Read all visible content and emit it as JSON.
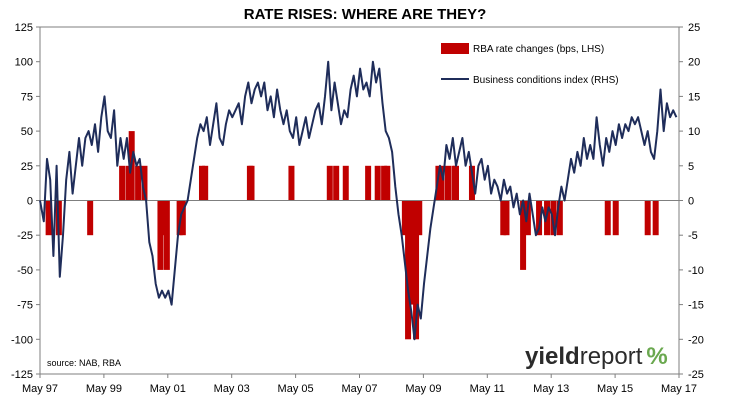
{
  "chart_data": {
    "type": "bar+line",
    "title": "RATE RISES: WHERE ARE THEY?",
    "source": "source: NAB, RBA",
    "brand": {
      "word": "yield",
      "word2": "report",
      "symbol": "%",
      "colors": {
        "dark": "#2b2b2b",
        "accent": "#6aa84f"
      }
    },
    "x_ticks": [
      "May 97",
      "May 99",
      "May 01",
      "May 03",
      "May 05",
      "May 07",
      "May 09",
      "May 11",
      "May 13",
      "May 15",
      "May 17"
    ],
    "xlim": [
      1997.33,
      2017.33
    ],
    "y_left": {
      "ticks": [
        125,
        100,
        75,
        50,
        25,
        0,
        -25,
        -50,
        -75,
        -100,
        -125
      ],
      "ylim": [
        -125,
        125
      ]
    },
    "y_right": {
      "ticks": [
        25,
        20,
        15,
        10,
        5,
        0,
        -5,
        -10,
        -15,
        -20,
        -25
      ],
      "ylim": [
        -25,
        25
      ]
    },
    "series": [
      {
        "name": "RBA rate changes (bps, LHS)",
        "kind": "bar",
        "axis": "left",
        "color": "#c00000",
        "points": [
          [
            1997.6,
            -25
          ],
          [
            1997.92,
            -25
          ],
          [
            1998.9,
            -25
          ],
          [
            1999.9,
            25
          ],
          [
            2000.1,
            25
          ],
          [
            2000.2,
            50
          ],
          [
            2000.4,
            25
          ],
          [
            2000.6,
            25
          ],
          [
            2001.1,
            -50
          ],
          [
            2001.2,
            -25
          ],
          [
            2001.3,
            -50
          ],
          [
            2001.7,
            -25
          ],
          [
            2001.8,
            -25
          ],
          [
            2002.4,
            25
          ],
          [
            2002.5,
            25
          ],
          [
            2003.9,
            25
          ],
          [
            2003.95,
            25
          ],
          [
            2005.2,
            25
          ],
          [
            2006.4,
            25
          ],
          [
            2006.6,
            25
          ],
          [
            2006.9,
            25
          ],
          [
            2007.6,
            25
          ],
          [
            2007.9,
            25
          ],
          [
            2008.1,
            25
          ],
          [
            2008.2,
            25
          ],
          [
            2008.75,
            -25
          ],
          [
            2008.85,
            -100
          ],
          [
            2008.95,
            -75
          ],
          [
            2009.1,
            -100
          ],
          [
            2009.2,
            -25
          ],
          [
            2009.8,
            25
          ],
          [
            2009.9,
            25
          ],
          [
            2010.1,
            25
          ],
          [
            2010.3,
            25
          ],
          [
            2010.35,
            25
          ],
          [
            2010.85,
            25
          ],
          [
            2011.83,
            -25
          ],
          [
            2011.93,
            -25
          ],
          [
            2012.45,
            -50
          ],
          [
            2012.6,
            -25
          ],
          [
            2012.95,
            -25
          ],
          [
            2013.2,
            -25
          ],
          [
            2013.4,
            -25
          ],
          [
            2013.6,
            -25
          ],
          [
            2015.1,
            -25
          ],
          [
            2015.35,
            -25
          ],
          [
            2016.35,
            -25
          ],
          [
            2016.6,
            -25
          ]
        ]
      },
      {
        "name": "Business conditions index (RHS)",
        "kind": "line",
        "axis": "right",
        "color": "#1f2d5a",
        "points": [
          [
            1997.33,
            0
          ],
          [
            1997.45,
            -3
          ],
          [
            1997.55,
            6
          ],
          [
            1997.65,
            3
          ],
          [
            1997.75,
            -8
          ],
          [
            1997.85,
            5
          ],
          [
            1997.95,
            -11
          ],
          [
            1998.05,
            -5
          ],
          [
            1998.15,
            3
          ],
          [
            1998.25,
            7
          ],
          [
            1998.35,
            1
          ],
          [
            1998.45,
            5
          ],
          [
            1998.55,
            9
          ],
          [
            1998.65,
            5
          ],
          [
            1998.75,
            9
          ],
          [
            1998.85,
            10
          ],
          [
            1998.95,
            8
          ],
          [
            1999.05,
            11
          ],
          [
            1999.15,
            7
          ],
          [
            1999.25,
            12
          ],
          [
            1999.35,
            15
          ],
          [
            1999.45,
            10
          ],
          [
            1999.55,
            9
          ],
          [
            1999.65,
            13
          ],
          [
            1999.75,
            5
          ],
          [
            1999.85,
            9
          ],
          [
            1999.95,
            6
          ],
          [
            2000.05,
            9
          ],
          [
            2000.15,
            4
          ],
          [
            2000.25,
            7
          ],
          [
            2000.35,
            5
          ],
          [
            2000.45,
            6
          ],
          [
            2000.55,
            2
          ],
          [
            2000.65,
            0
          ],
          [
            2000.75,
            -6
          ],
          [
            2000.85,
            -8
          ],
          [
            2000.95,
            -12
          ],
          [
            2001.05,
            -14
          ],
          [
            2001.15,
            -13
          ],
          [
            2001.25,
            -14
          ],
          [
            2001.35,
            -13
          ],
          [
            2001.45,
            -15
          ],
          [
            2001.55,
            -10
          ],
          [
            2001.65,
            -5
          ],
          [
            2001.75,
            -2
          ],
          [
            2001.85,
            -1
          ],
          [
            2001.95,
            0
          ],
          [
            2002.05,
            3
          ],
          [
            2002.15,
            6
          ],
          [
            2002.25,
            9
          ],
          [
            2002.35,
            11
          ],
          [
            2002.45,
            10
          ],
          [
            2002.55,
            12
          ],
          [
            2002.65,
            8
          ],
          [
            2002.75,
            11
          ],
          [
            2002.85,
            14
          ],
          [
            2002.95,
            9
          ],
          [
            2003.05,
            8
          ],
          [
            2003.15,
            11
          ],
          [
            2003.25,
            13
          ],
          [
            2003.35,
            12
          ],
          [
            2003.45,
            13
          ],
          [
            2003.55,
            14
          ],
          [
            2003.65,
            11
          ],
          [
            2003.75,
            15
          ],
          [
            2003.85,
            17
          ],
          [
            2003.95,
            14
          ],
          [
            2004.05,
            16
          ],
          [
            2004.15,
            17
          ],
          [
            2004.25,
            15
          ],
          [
            2004.35,
            17
          ],
          [
            2004.45,
            13
          ],
          [
            2004.55,
            15
          ],
          [
            2004.65,
            12
          ],
          [
            2004.75,
            16
          ],
          [
            2004.85,
            13
          ],
          [
            2004.95,
            11
          ],
          [
            2005.05,
            13
          ],
          [
            2005.15,
            10
          ],
          [
            2005.25,
            9
          ],
          [
            2005.35,
            12
          ],
          [
            2005.45,
            8
          ],
          [
            2005.55,
            10
          ],
          [
            2005.65,
            12
          ],
          [
            2005.75,
            9
          ],
          [
            2005.85,
            11
          ],
          [
            2005.95,
            13
          ],
          [
            2006.05,
            14
          ],
          [
            2006.15,
            11
          ],
          [
            2006.25,
            15
          ],
          [
            2006.35,
            20
          ],
          [
            2006.45,
            13
          ],
          [
            2006.55,
            17
          ],
          [
            2006.65,
            14
          ],
          [
            2006.75,
            11
          ],
          [
            2006.85,
            13
          ],
          [
            2006.95,
            12
          ],
          [
            2007.05,
            16
          ],
          [
            2007.15,
            18
          ],
          [
            2007.25,
            15
          ],
          [
            2007.35,
            19
          ],
          [
            2007.45,
            16
          ],
          [
            2007.55,
            17
          ],
          [
            2007.65,
            15
          ],
          [
            2007.75,
            20
          ],
          [
            2007.85,
            17
          ],
          [
            2007.95,
            19
          ],
          [
            2008.05,
            14
          ],
          [
            2008.15,
            10
          ],
          [
            2008.25,
            9
          ],
          [
            2008.35,
            7
          ],
          [
            2008.45,
            2
          ],
          [
            2008.55,
            -2
          ],
          [
            2008.65,
            -5
          ],
          [
            2008.75,
            -9
          ],
          [
            2008.85,
            -13
          ],
          [
            2008.95,
            -16
          ],
          [
            2009.05,
            -20
          ],
          [
            2009.15,
            -15
          ],
          [
            2009.25,
            -17
          ],
          [
            2009.35,
            -12
          ],
          [
            2009.45,
            -8
          ],
          [
            2009.55,
            -4
          ],
          [
            2009.65,
            -1
          ],
          [
            2009.75,
            2
          ],
          [
            2009.85,
            5
          ],
          [
            2009.95,
            3
          ],
          [
            2010.05,
            8
          ],
          [
            2010.15,
            6
          ],
          [
            2010.25,
            9
          ],
          [
            2010.35,
            5
          ],
          [
            2010.45,
            7
          ],
          [
            2010.55,
            9
          ],
          [
            2010.65,
            5
          ],
          [
            2010.75,
            7
          ],
          [
            2010.85,
            4
          ],
          [
            2010.95,
            1
          ],
          [
            2011.05,
            5
          ],
          [
            2011.15,
            6
          ],
          [
            2011.25,
            3
          ],
          [
            2011.35,
            5
          ],
          [
            2011.45,
            1
          ],
          [
            2011.55,
            3
          ],
          [
            2011.65,
            2
          ],
          [
            2011.75,
            0
          ],
          [
            2011.85,
            3
          ],
          [
            2011.95,
            1
          ],
          [
            2012.05,
            2
          ],
          [
            2012.15,
            -1
          ],
          [
            2012.25,
            1
          ],
          [
            2012.35,
            -2
          ],
          [
            2012.45,
            0
          ],
          [
            2012.55,
            -3
          ],
          [
            2012.65,
            1
          ],
          [
            2012.75,
            -2
          ],
          [
            2012.85,
            -5
          ],
          [
            2012.95,
            -4
          ],
          [
            2013.05,
            -1
          ],
          [
            2013.15,
            -3
          ],
          [
            2013.25,
            -1
          ],
          [
            2013.35,
            -2
          ],
          [
            2013.45,
            -5
          ],
          [
            2013.55,
            -1
          ],
          [
            2013.65,
            2
          ],
          [
            2013.75,
            0
          ],
          [
            2013.85,
            3
          ],
          [
            2013.95,
            6
          ],
          [
            2014.05,
            4
          ],
          [
            2014.15,
            7
          ],
          [
            2014.25,
            5
          ],
          [
            2014.35,
            9
          ],
          [
            2014.45,
            6
          ],
          [
            2014.55,
            8
          ],
          [
            2014.65,
            6
          ],
          [
            2014.75,
            12
          ],
          [
            2014.85,
            8
          ],
          [
            2014.95,
            5
          ],
          [
            2015.05,
            9
          ],
          [
            2015.15,
            7
          ],
          [
            2015.25,
            10
          ],
          [
            2015.35,
            8
          ],
          [
            2015.45,
            11
          ],
          [
            2015.55,
            9
          ],
          [
            2015.65,
            11
          ],
          [
            2015.75,
            10
          ],
          [
            2015.85,
            12
          ],
          [
            2015.95,
            11
          ],
          [
            2016.05,
            12
          ],
          [
            2016.15,
            10
          ],
          [
            2016.25,
            8
          ],
          [
            2016.35,
            10
          ],
          [
            2016.45,
            7
          ],
          [
            2016.55,
            6
          ],
          [
            2016.65,
            10
          ],
          [
            2016.75,
            16
          ],
          [
            2016.85,
            10
          ],
          [
            2016.95,
            14
          ],
          [
            2017.05,
            12
          ],
          [
            2017.15,
            13
          ],
          [
            2017.25,
            12
          ]
        ]
      }
    ],
    "legend": {
      "placement": "top-right"
    },
    "grid": false
  }
}
